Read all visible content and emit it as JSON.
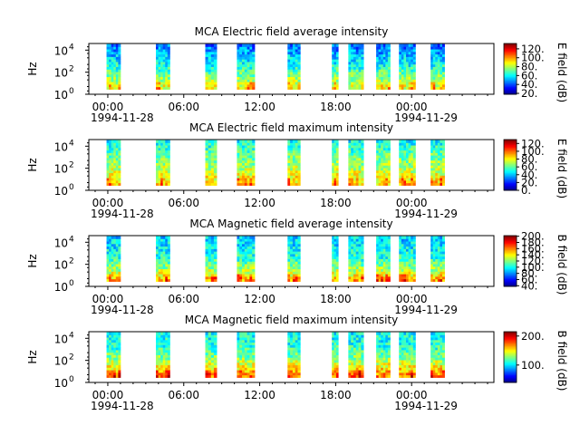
{
  "figure": {
    "date_start": "1994-11-28",
    "date_end": "1994-11-29"
  },
  "chart_data": [
    {
      "type": "heatmap",
      "title": "MCA  Electric field average intensity",
      "ylabel": "Hz",
      "yscale": "log",
      "ylim_exponent": [
        0,
        4.6
      ],
      "yticks": [
        {
          "base": "10",
          "exp": "0",
          "value": 0
        },
        {
          "base": "10",
          "exp": "2",
          "value": 2
        },
        {
          "base": "10",
          "exp": "4",
          "value": 4
        }
      ],
      "xlim_hours": [
        -1.5,
        30.5
      ],
      "xticks": [
        {
          "label": "00:00",
          "hour": 0
        },
        {
          "label": "06:00",
          "hour": 6
        },
        {
          "label": "12:00",
          "hour": 12
        },
        {
          "label": "18:00",
          "hour": 18
        },
        {
          "label": "00:00",
          "hour": 24
        }
      ],
      "colorbar": {
        "label": "E field (dB)",
        "min": 18,
        "max": 132,
        "ticks": [
          "20.",
          "40.",
          "60.",
          "80.",
          "100.",
          "120."
        ],
        "tick_values": [
          20,
          40,
          60,
          80,
          100,
          120
        ]
      },
      "colormap": "jet",
      "data_intervals_hours": [
        [
          -0.1,
          1.0
        ],
        [
          3.8,
          4.9
        ],
        [
          7.7,
          8.6
        ],
        [
          10.2,
          11.6
        ],
        [
          14.2,
          15.2
        ],
        [
          17.7,
          18.2
        ],
        [
          19.0,
          20.2
        ],
        [
          21.2,
          22.3
        ],
        [
          23.0,
          24.3
        ],
        [
          25.5,
          26.6
        ]
      ],
      "spectrum_profile": {
        "freq_exponent": [
          0.5,
          1.5,
          2.5,
          3.5,
          4.5
        ],
        "level": [
          0.62,
          0.52,
          0.4,
          0.32,
          0.22
        ]
      }
    },
    {
      "type": "heatmap",
      "title": "MCA  Electric field maximum intensity",
      "ylabel": "Hz",
      "yscale": "log",
      "ylim_exponent": [
        0,
        4.6
      ],
      "yticks": [
        {
          "base": "10",
          "exp": "0",
          "value": 0
        },
        {
          "base": "10",
          "exp": "2",
          "value": 2
        },
        {
          "base": "10",
          "exp": "4",
          "value": 4
        }
      ],
      "xlim_hours": [
        -1.5,
        30.5
      ],
      "xticks": [
        {
          "label": "00:00",
          "hour": 0
        },
        {
          "label": "06:00",
          "hour": 6
        },
        {
          "label": "12:00",
          "hour": 12
        },
        {
          "label": "18:00",
          "hour": 18
        },
        {
          "label": "00:00",
          "hour": 24
        }
      ],
      "colorbar": {
        "label": "E field (dB)",
        "min": 0,
        "max": 130,
        "ticks": [
          "0.",
          "20.",
          "40.",
          "60.",
          "80.",
          "100.",
          "120."
        ],
        "tick_values": [
          0,
          20,
          40,
          60,
          80,
          100,
          120
        ]
      },
      "colormap": "jet",
      "data_intervals_hours": [
        [
          -0.1,
          1.0
        ],
        [
          3.8,
          4.9
        ],
        [
          7.7,
          8.6
        ],
        [
          10.2,
          11.6
        ],
        [
          14.2,
          15.2
        ],
        [
          17.7,
          18.2
        ],
        [
          19.0,
          20.2
        ],
        [
          21.2,
          22.3
        ],
        [
          23.0,
          24.3
        ],
        [
          25.5,
          26.6
        ]
      ],
      "spectrum_profile": {
        "freq_exponent": [
          0.5,
          1.5,
          2.5,
          3.5,
          4.5
        ],
        "level": [
          0.68,
          0.6,
          0.52,
          0.45,
          0.38
        ]
      }
    },
    {
      "type": "heatmap",
      "title": "MCA  Magnetic field average intensity",
      "ylabel": "Hz",
      "yscale": "log",
      "ylim_exponent": [
        0,
        4.6
      ],
      "yticks": [
        {
          "base": "10",
          "exp": "0",
          "value": 0
        },
        {
          "base": "10",
          "exp": "2",
          "value": 2
        },
        {
          "base": "10",
          "exp": "4",
          "value": 4
        }
      ],
      "xlim_hours": [
        -1.5,
        30.5
      ],
      "xticks": [
        {
          "label": "00:00",
          "hour": 0
        },
        {
          "label": "06:00",
          "hour": 6
        },
        {
          "label": "12:00",
          "hour": 12
        },
        {
          "label": "18:00",
          "hour": 18
        },
        {
          "label": "00:00",
          "hour": 24
        }
      ],
      "colorbar": {
        "label": "B field (dB)",
        "min": 38,
        "max": 202,
        "ticks": [
          "40.",
          "60.",
          "80.",
          "100.",
          "120.",
          "140.",
          "160.",
          "180.",
          "200."
        ],
        "tick_values": [
          40,
          60,
          80,
          100,
          120,
          140,
          160,
          180,
          200
        ]
      },
      "colormap": "jet",
      "data_intervals_hours": [
        [
          -0.1,
          1.0
        ],
        [
          3.8,
          4.9
        ],
        [
          7.7,
          8.6
        ],
        [
          10.2,
          11.6
        ],
        [
          14.2,
          15.2
        ],
        [
          17.7,
          18.2
        ],
        [
          19.0,
          20.2
        ],
        [
          21.2,
          22.3
        ],
        [
          23.0,
          24.3
        ],
        [
          25.5,
          26.6
        ]
      ],
      "spectrum_profile": {
        "freq_exponent": [
          0.5,
          1.5,
          2.5,
          3.5,
          4.5
        ],
        "level": [
          0.72,
          0.55,
          0.42,
          0.36,
          0.33
        ]
      }
    },
    {
      "type": "heatmap",
      "title": "MCA  Magnetic field maximum intensity",
      "ylabel": "Hz",
      "yscale": "log",
      "ylim_exponent": [
        0,
        4.6
      ],
      "yticks": [
        {
          "base": "10",
          "exp": "0",
          "value": 0
        },
        {
          "base": "10",
          "exp": "2",
          "value": 2
        },
        {
          "base": "10",
          "exp": "4",
          "value": 4
        }
      ],
      "xlim_hours": [
        -1.5,
        30.5
      ],
      "xticks": [
        {
          "label": "00:00",
          "hour": 0
        },
        {
          "label": "06:00",
          "hour": 6
        },
        {
          "label": "12:00",
          "hour": 12
        },
        {
          "label": "18:00",
          "hour": 18
        },
        {
          "label": "00:00",
          "hour": 24
        }
      ],
      "colorbar": {
        "label": "B field (dB)",
        "min": 40,
        "max": 215,
        "ticks": [
          "100.",
          "200."
        ],
        "tick_values": [
          100,
          200
        ]
      },
      "colormap": "jet",
      "data_intervals_hours": [
        [
          -0.1,
          1.0
        ],
        [
          3.8,
          4.9
        ],
        [
          7.7,
          8.6
        ],
        [
          10.2,
          11.6
        ],
        [
          14.2,
          15.2
        ],
        [
          17.7,
          18.2
        ],
        [
          19.0,
          20.2
        ],
        [
          21.2,
          22.3
        ],
        [
          23.0,
          24.3
        ],
        [
          25.5,
          26.6
        ]
      ],
      "spectrum_profile": {
        "freq_exponent": [
          0.5,
          1.5,
          2.5,
          3.5,
          4.5
        ],
        "level": [
          0.78,
          0.62,
          0.48,
          0.4,
          0.38
        ]
      }
    }
  ]
}
